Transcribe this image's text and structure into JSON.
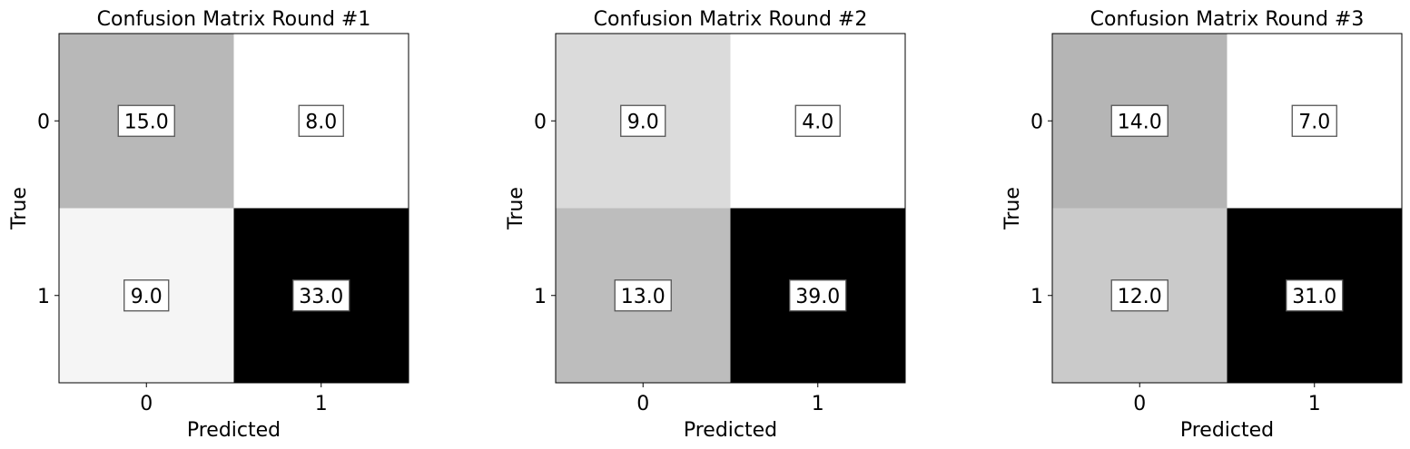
{
  "chart_data": [
    {
      "type": "heatmap",
      "title": "Confusion Matrix Round #1",
      "xlabel": "Predicted",
      "ylabel": "True",
      "x_ticks": [
        "0",
        "1"
      ],
      "y_ticks": [
        "0",
        "1"
      ],
      "values": [
        [
          15.0,
          8.0
        ],
        [
          9.0,
          33.0
        ]
      ],
      "labels": [
        [
          "15.0",
          "8.0"
        ],
        [
          "9.0",
          "33.0"
        ]
      ],
      "colormap": "Greys",
      "grid": false
    },
    {
      "type": "heatmap",
      "title": "Confusion Matrix Round #2",
      "xlabel": "Predicted",
      "ylabel": "True",
      "x_ticks": [
        "0",
        "1"
      ],
      "y_ticks": [
        "0",
        "1"
      ],
      "values": [
        [
          9.0,
          4.0
        ],
        [
          13.0,
          39.0
        ]
      ],
      "labels": [
        [
          "9.0",
          "4.0"
        ],
        [
          "13.0",
          "39.0"
        ]
      ],
      "colormap": "Greys",
      "grid": false
    },
    {
      "type": "heatmap",
      "title": "Confusion Matrix Round #3",
      "xlabel": "Predicted",
      "ylabel": "True",
      "x_ticks": [
        "0",
        "1"
      ],
      "y_ticks": [
        "0",
        "1"
      ],
      "values": [
        [
          14.0,
          7.0
        ],
        [
          12.0,
          31.0
        ]
      ],
      "labels": [
        [
          "14.0",
          "7.0"
        ],
        [
          "12.0",
          "31.0"
        ]
      ],
      "colormap": "Greys",
      "grid": false
    }
  ]
}
